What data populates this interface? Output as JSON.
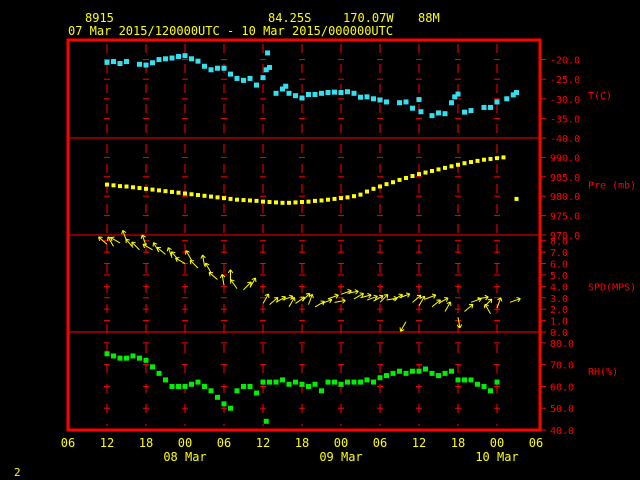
{
  "header": {
    "station": "8915",
    "lat": "84.25S",
    "lon": "170.07W",
    "elev": "88M",
    "period": "07 Mar 2015/120000UTC - 10 Mar 2015/000000UTC"
  },
  "footer_page": "2",
  "colors": {
    "frame": "#ff0000",
    "text": "#ffff00",
    "temperature": "#33e0f0",
    "pressure": "#ffff00",
    "wind": "#ffff00",
    "rh": "#00ee00",
    "tick": "#ff0000"
  },
  "chart_data": {
    "type": "scatter",
    "x_axis": {
      "unit": "hours since 07 Mar 2015 06 UTC",
      "range": [
        0,
        72
      ],
      "tick_labels": [
        "06",
        "12",
        "18",
        "00",
        "06",
        "12",
        "18",
        "00",
        "06",
        "12",
        "18",
        "00",
        "06"
      ],
      "tick_hours": [
        0,
        6,
        12,
        18,
        24,
        30,
        36,
        42,
        48,
        54,
        60,
        66,
        72
      ],
      "day_labels": [
        {
          "label": "08 Mar",
          "hour": 18
        },
        {
          "label": "09 Mar",
          "hour": 42
        },
        {
          "label": "10 Mar",
          "hour": 66
        }
      ]
    },
    "panels": [
      {
        "name": "temperature",
        "label": "T(C)",
        "ylim": [
          -40,
          -15
        ],
        "ticks": [
          -20,
          -25,
          -30,
          -35,
          -40
        ],
        "tick_labels": [
          "-20.0",
          "-25.0",
          "-30.0",
          "-35.0",
          "-40.0"
        ],
        "label_at": -29,
        "series": [
          [
            6,
            -20.7
          ],
          [
            7,
            -20.5
          ],
          [
            8,
            -21
          ],
          [
            9,
            -20.5
          ],
          [
            11,
            -21.2
          ],
          [
            12,
            -21.4
          ],
          [
            13,
            -20.8
          ],
          [
            14,
            -20
          ],
          [
            15,
            -19.8
          ],
          [
            16,
            -19.6
          ],
          [
            17,
            -19.2
          ],
          [
            18,
            -19
          ],
          [
            19,
            -19.8
          ],
          [
            20,
            -20.4
          ],
          [
            21,
            -21.7
          ],
          [
            22,
            -22.6
          ],
          [
            23,
            -22.2
          ],
          [
            24,
            -22.2
          ],
          [
            25,
            -23.7
          ],
          [
            26,
            -24.8
          ],
          [
            27,
            -25.3
          ],
          [
            28,
            -24.8
          ],
          [
            29,
            -26.5
          ],
          [
            30,
            -24.6
          ],
          [
            30.5,
            -22.6
          ],
          [
            31,
            -22
          ],
          [
            30.7,
            -18.3
          ],
          [
            32,
            -28.6
          ],
          [
            33,
            -27.5
          ],
          [
            33.5,
            -26.8
          ],
          [
            34,
            -28.6
          ],
          [
            35,
            -29.2
          ],
          [
            36,
            -29.8
          ],
          [
            37,
            -28.9
          ],
          [
            38,
            -28.9
          ],
          [
            39,
            -28.6
          ],
          [
            40,
            -28.4
          ],
          [
            41,
            -28.3
          ],
          [
            42,
            -28.4
          ],
          [
            43,
            -28.2
          ],
          [
            44,
            -28.6
          ],
          [
            45,
            -29.6
          ],
          [
            46,
            -29.5
          ],
          [
            47,
            -30
          ],
          [
            48,
            -30.3
          ],
          [
            49,
            -30.8
          ],
          [
            51,
            -31
          ],
          [
            52,
            -30.8
          ],
          [
            53,
            -32.4
          ],
          [
            54,
            -30.2
          ],
          [
            54.3,
            -33.3
          ],
          [
            56,
            -34.3
          ],
          [
            57,
            -33.6
          ],
          [
            58,
            -33.8
          ],
          [
            59,
            -31
          ],
          [
            59.5,
            -29.5
          ],
          [
            60,
            -28.8
          ],
          [
            61,
            -33.4
          ],
          [
            62,
            -33
          ],
          [
            64,
            -32.2
          ],
          [
            65,
            -32.2
          ],
          [
            66,
            -30.8
          ],
          [
            67.5,
            -30
          ],
          [
            68.5,
            -29
          ],
          [
            69,
            -28.4
          ]
        ]
      },
      {
        "name": "pressure",
        "label": "Pre (mb)",
        "ylim": [
          970,
          995
        ],
        "ticks": [
          990,
          985,
          980,
          975,
          970
        ],
        "tick_labels": [
          "990.0",
          "985.0",
          "980.0",
          "975.0",
          "970.0"
        ],
        "label_at": 983,
        "series": [
          [
            6,
            983
          ],
          [
            7,
            982.8
          ],
          [
            8,
            982.6
          ],
          [
            9,
            982.5
          ],
          [
            10,
            982.3
          ],
          [
            11,
            982.1
          ],
          [
            12,
            981.9
          ],
          [
            13,
            981.7
          ],
          [
            14,
            981.5
          ],
          [
            15,
            981.3
          ],
          [
            16,
            981.1
          ],
          [
            17,
            980.9
          ],
          [
            18,
            980.7
          ],
          [
            19,
            980.5
          ],
          [
            20,
            980.3
          ],
          [
            21,
            980.1
          ],
          [
            22,
            979.9
          ],
          [
            23,
            979.7
          ],
          [
            24,
            979.5
          ],
          [
            25,
            979.3
          ],
          [
            26,
            979.1
          ],
          [
            27,
            979
          ],
          [
            28,
            978.9
          ],
          [
            29,
            978.8
          ],
          [
            30,
            978.6
          ],
          [
            31,
            978.5
          ],
          [
            32,
            978.4
          ],
          [
            33,
            978.3
          ],
          [
            34,
            978.3
          ],
          [
            35,
            978.4
          ],
          [
            36,
            978.5
          ],
          [
            37,
            978.6
          ],
          [
            38,
            978.8
          ],
          [
            39,
            978.9
          ],
          [
            40,
            979.1
          ],
          [
            41,
            979.3
          ],
          [
            42,
            979.5
          ],
          [
            43,
            979.7
          ],
          [
            44,
            980
          ],
          [
            45,
            980.4
          ],
          [
            46,
            981.2
          ],
          [
            47,
            981.9
          ],
          [
            48,
            982.5
          ],
          [
            49,
            983.1
          ],
          [
            50,
            983.6
          ],
          [
            51,
            984.2
          ],
          [
            52,
            984.7
          ],
          [
            53,
            985.2
          ],
          [
            54,
            985.7
          ],
          [
            55,
            986.1
          ],
          [
            56,
            986.5
          ],
          [
            57,
            986.9
          ],
          [
            58,
            987.3
          ],
          [
            59,
            987.7
          ],
          [
            60,
            988.1
          ],
          [
            61,
            988.5
          ],
          [
            62,
            988.8
          ],
          [
            63,
            989.1
          ],
          [
            64,
            989.4
          ],
          [
            65,
            989.6
          ],
          [
            66,
            989.8
          ],
          [
            67,
            990
          ],
          [
            69,
            979.3
          ]
        ]
      },
      {
        "name": "wind",
        "label": "SPD(MPS)",
        "ylim": [
          0,
          8.5
        ],
        "ticks": [
          8,
          7,
          6,
          5,
          4,
          3,
          2,
          1,
          0
        ],
        "tick_labels": [
          "8.0",
          "7.0",
          "6.0",
          "5.0",
          "4.0",
          "3.0",
          "2.0",
          "1.0",
          "0.0"
        ],
        "label_at": 4,
        "series": [
          [
            6,
            7.7,
            -140
          ],
          [
            7,
            7.5,
            -120
          ],
          [
            8,
            7.8,
            -150
          ],
          [
            9,
            8,
            -110
          ],
          [
            10,
            7.4,
            -130
          ],
          [
            11,
            7.2,
            -135
          ],
          [
            12,
            7.6,
            -110
          ],
          [
            13,
            7.2,
            -150
          ],
          [
            14,
            7,
            -120
          ],
          [
            15,
            6.8,
            -140
          ],
          [
            16,
            6.5,
            -110
          ],
          [
            17,
            6.3,
            -130
          ],
          [
            18,
            6,
            -150
          ],
          [
            19,
            6.3,
            -120
          ],
          [
            20,
            5.6,
            -135
          ],
          [
            21,
            5.8,
            -100
          ],
          [
            22,
            5.2,
            -120
          ],
          [
            23,
            4.6,
            -140
          ],
          [
            24,
            4.1,
            -100
          ],
          [
            25,
            4.5,
            -90
          ],
          [
            26,
            3.8,
            -125
          ],
          [
            27,
            3.7,
            -45
          ],
          [
            28,
            3.9,
            -60
          ],
          [
            30,
            2.5,
            -60
          ],
          [
            31,
            2.4,
            -40
          ],
          [
            32,
            2.6,
            -30
          ],
          [
            33,
            2.8,
            -20
          ],
          [
            34,
            2.2,
            -60
          ],
          [
            35,
            2.5,
            -35
          ],
          [
            36,
            2.7,
            -45
          ],
          [
            37,
            2.4,
            -70
          ],
          [
            38,
            2.2,
            -30
          ],
          [
            39,
            2.5,
            -20
          ],
          [
            40,
            2.9,
            -20
          ],
          [
            41,
            2.6,
            -10
          ],
          [
            42,
            3.3,
            -20
          ],
          [
            43,
            3.4,
            -10
          ],
          [
            44,
            2.9,
            -30
          ],
          [
            45,
            3,
            -15
          ],
          [
            46,
            2.8,
            -20
          ],
          [
            47,
            2.7,
            -30
          ],
          [
            48,
            2.6,
            -45
          ],
          [
            49,
            2.8,
            -10
          ],
          [
            50,
            2.8,
            -30
          ],
          [
            51,
            3,
            -20
          ],
          [
            52,
            0.9,
            120
          ],
          [
            53,
            2.6,
            -40
          ],
          [
            54,
            2.3,
            -60
          ],
          [
            55,
            2.9,
            -20
          ],
          [
            56,
            2.2,
            -40
          ],
          [
            57,
            2.5,
            -30
          ],
          [
            58,
            1.8,
            -60
          ],
          [
            60,
            1.3,
            80
          ],
          [
            61,
            1.8,
            -40
          ],
          [
            62,
            2.6,
            -20
          ],
          [
            63,
            2.9,
            -10
          ],
          [
            64,
            2.2,
            -45
          ],
          [
            65,
            1.6,
            -120
          ],
          [
            66,
            2.1,
            -70
          ],
          [
            68,
            2.6,
            -20
          ]
        ]
      },
      {
        "name": "rh",
        "label": "RH(%)",
        "ylim": [
          40,
          85
        ],
        "ticks": [
          80,
          70,
          60,
          50,
          40
        ],
        "tick_labels": [
          "80.0",
          "70.0",
          "60.0",
          "50.0",
          "40.0"
        ],
        "label_at": 67,
        "series": [
          [
            6,
            75
          ],
          [
            7,
            74
          ],
          [
            8,
            73
          ],
          [
            9,
            73
          ],
          [
            10,
            74
          ],
          [
            11,
            73
          ],
          [
            12,
            72
          ],
          [
            13,
            69
          ],
          [
            14,
            66
          ],
          [
            15,
            63
          ],
          [
            16,
            60
          ],
          [
            17,
            60
          ],
          [
            18,
            60
          ],
          [
            19,
            61
          ],
          [
            20,
            62
          ],
          [
            21,
            60
          ],
          [
            22,
            58
          ],
          [
            23,
            55
          ],
          [
            24,
            52
          ],
          [
            25,
            50
          ],
          [
            26,
            58
          ],
          [
            27,
            60
          ],
          [
            28,
            60
          ],
          [
            29,
            57
          ],
          [
            30,
            62
          ],
          [
            31,
            62
          ],
          [
            32,
            62
          ],
          [
            33,
            63
          ],
          [
            34,
            61
          ],
          [
            35,
            62
          ],
          [
            36,
            61
          ],
          [
            37,
            60
          ],
          [
            38,
            61
          ],
          [
            39,
            58
          ],
          [
            40,
            62
          ],
          [
            41,
            62
          ],
          [
            42,
            61
          ],
          [
            43,
            62
          ],
          [
            44,
            62
          ],
          [
            45,
            62
          ],
          [
            46,
            63
          ],
          [
            47,
            62
          ],
          [
            48,
            64
          ],
          [
            49,
            65
          ],
          [
            50,
            66
          ],
          [
            51,
            67
          ],
          [
            52,
            66
          ],
          [
            53,
            67
          ],
          [
            54,
            67
          ],
          [
            55,
            68
          ],
          [
            56,
            66
          ],
          [
            57,
            65
          ],
          [
            58,
            66
          ],
          [
            59,
            67
          ],
          [
            60,
            63
          ],
          [
            61,
            63
          ],
          [
            62,
            63
          ],
          [
            63,
            61
          ],
          [
            64,
            60
          ],
          [
            65,
            58
          ],
          [
            66,
            62
          ],
          [
            30.5,
            44
          ]
        ]
      }
    ]
  }
}
